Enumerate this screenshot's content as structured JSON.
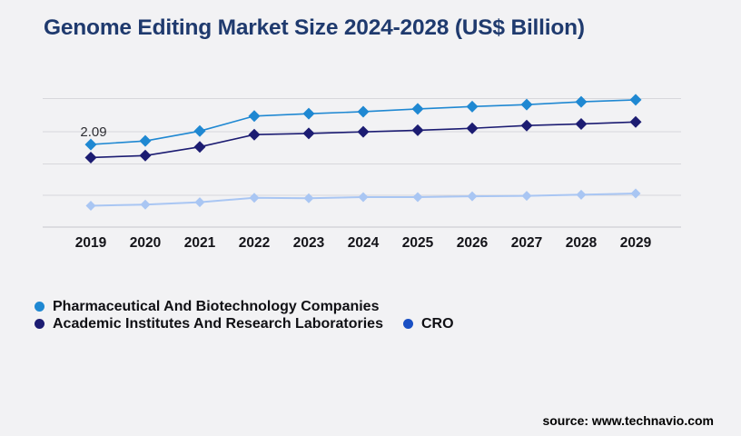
{
  "title": "Genome Editing Market Size 2024-2028 (US$ Billion)",
  "annotation": {
    "text": "2.09"
  },
  "source": "source: www.technavio.com",
  "colors": {
    "background": "#f2f2f4",
    "title": "#1f3a6e",
    "gridline": "#d7d7dc",
    "axisline": "#c6c6cb",
    "axis_label": "#141419"
  },
  "chart_data": {
    "type": "line",
    "title": "Genome Editing Market Size 2024-2028 (US$ Billion)",
    "xlabel": "",
    "ylabel": "",
    "ylim": [
      0,
      3.6
    ],
    "grid": "horizontal",
    "legend_position": "bottom-left",
    "categories": [
      "2019",
      "2020",
      "2021",
      "2022",
      "2023",
      "2024",
      "2025",
      "2026",
      "2027",
      "2028",
      "2029"
    ],
    "series": [
      {
        "name": "Pharmaceutical And Biotechnology Companies",
        "color": "#1f88d2",
        "legend_color": "#1f88d2",
        "values": [
          2.09,
          2.18,
          2.43,
          2.81,
          2.87,
          2.92,
          2.99,
          3.05,
          3.1,
          3.17,
          3.22
        ],
        "data_label_first_point": "2.09"
      },
      {
        "name": "Academic Institutes And Research Laboratories",
        "color": "#1c1c72",
        "legend_color": "#1c1c72",
        "values": [
          1.76,
          1.81,
          2.03,
          2.34,
          2.37,
          2.41,
          2.45,
          2.5,
          2.57,
          2.61,
          2.66
        ]
      },
      {
        "name": "CRO",
        "color": "#a9c6f3",
        "legend_color": "#1a50c4",
        "values": [
          0.54,
          0.57,
          0.63,
          0.74,
          0.73,
          0.76,
          0.76,
          0.78,
          0.79,
          0.82,
          0.85
        ]
      }
    ]
  }
}
